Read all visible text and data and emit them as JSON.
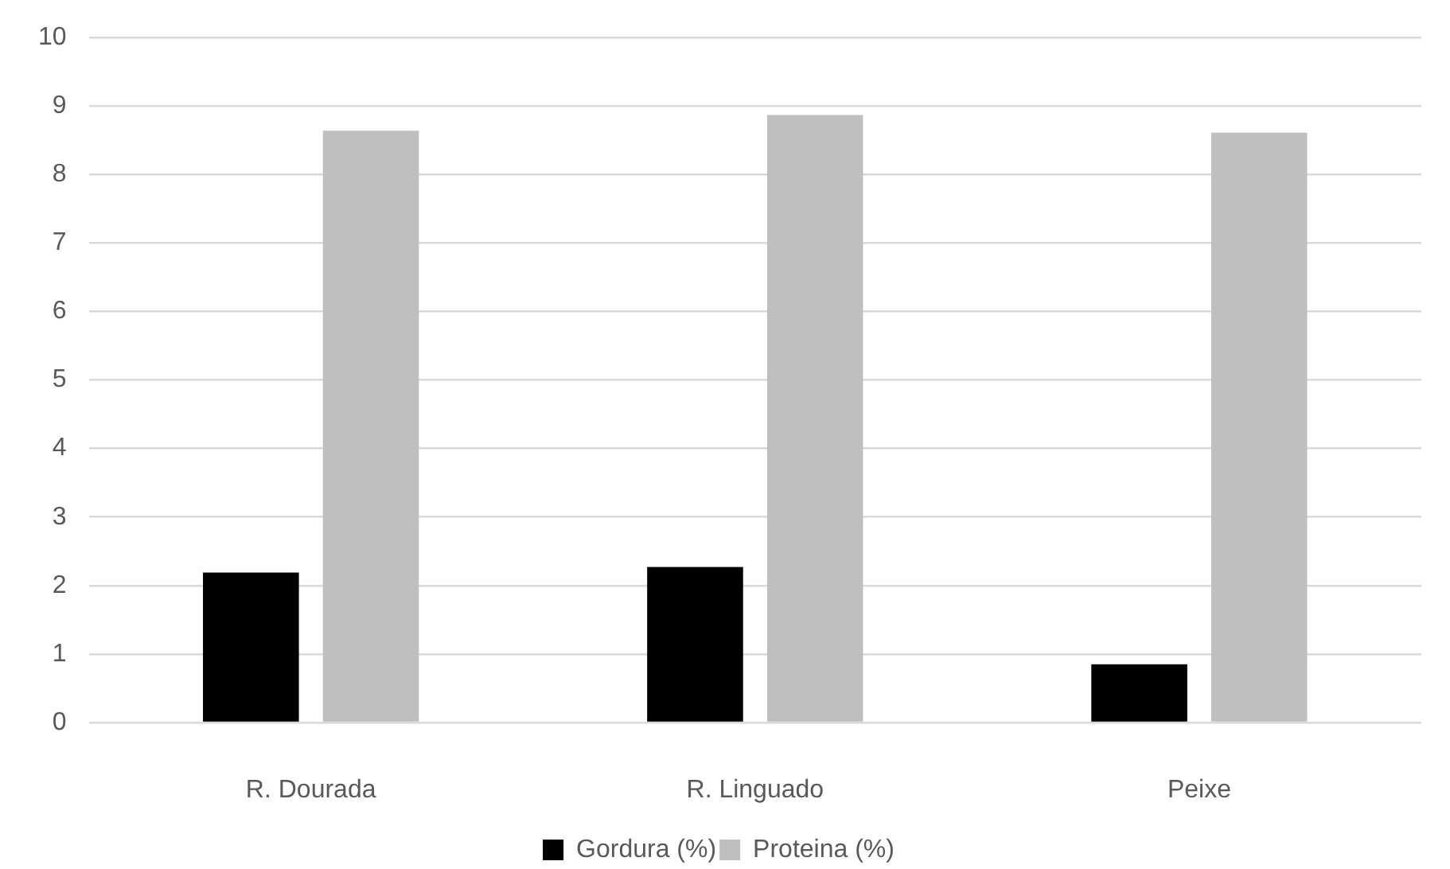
{
  "chart_data": {
    "type": "bar",
    "categories": [
      "R. Dourada",
      "R. Linguado",
      "Peixe"
    ],
    "series": [
      {
        "name": "Gordura (%)",
        "color": "#000000",
        "values": [
          2.19,
          2.27,
          0.85
        ]
      },
      {
        "name": "Proteina (%)",
        "color": "#bfbfbf",
        "values": [
          8.64,
          8.87,
          8.61
        ]
      }
    ],
    "ylim": [
      0,
      10
    ],
    "yticks": [
      0,
      1,
      2,
      3,
      4,
      5,
      6,
      7,
      8,
      9,
      10
    ],
    "grid": "y",
    "legend": "bottom"
  }
}
